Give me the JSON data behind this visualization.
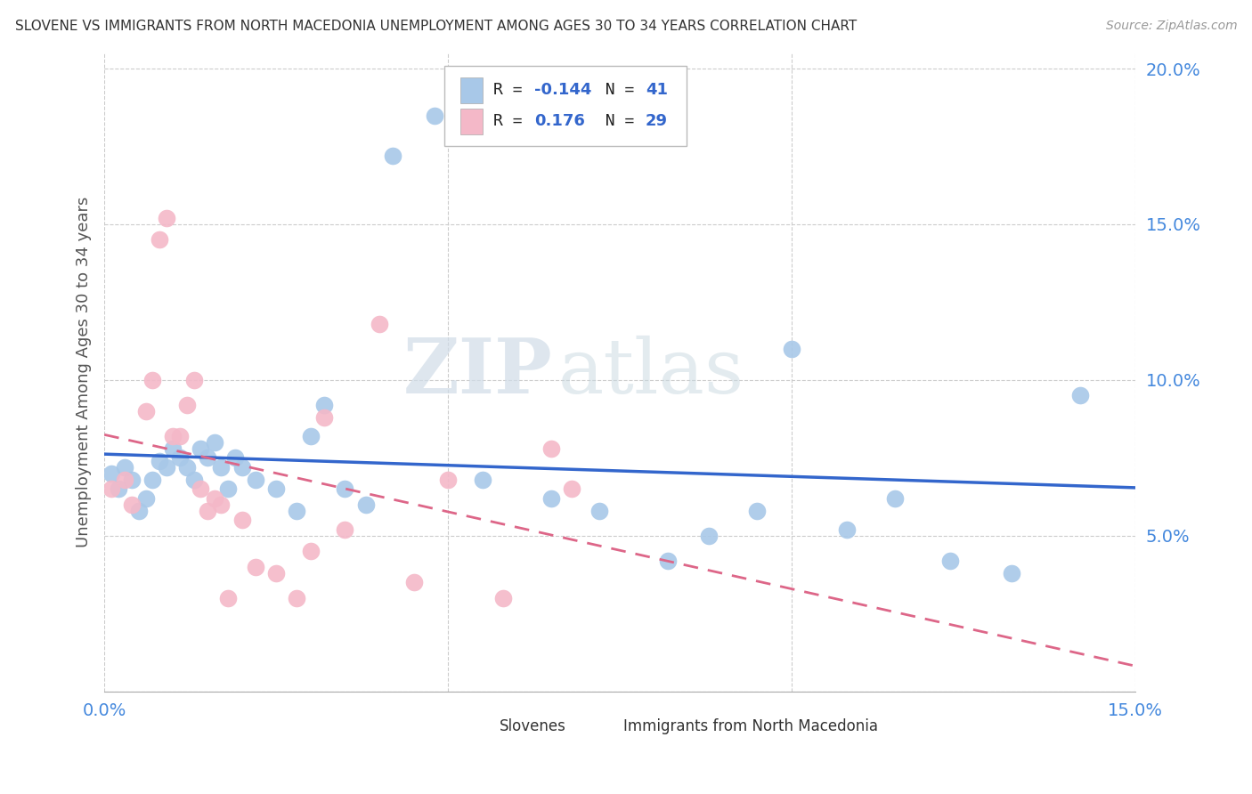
{
  "title": "SLOVENE VS IMMIGRANTS FROM NORTH MACEDONIA UNEMPLOYMENT AMONG AGES 30 TO 34 YEARS CORRELATION CHART",
  "source": "Source: ZipAtlas.com",
  "ylabel": "Unemployment Among Ages 30 to 34 years",
  "xlim": [
    0.0,
    0.15
  ],
  "ylim": [
    0.0,
    0.205
  ],
  "xticks": [
    0.0,
    0.05,
    0.1,
    0.15
  ],
  "yticks": [
    0.0,
    0.05,
    0.1,
    0.15,
    0.2
  ],
  "xtick_labels": [
    "0.0%",
    "",
    "",
    "15.0%"
  ],
  "ytick_labels": [
    "",
    "5.0%",
    "10.0%",
    "15.0%",
    "20.0%"
  ],
  "slovene_R": -0.144,
  "slovene_N": 41,
  "immig_R": 0.176,
  "immig_N": 29,
  "slovene_color": "#a8c8e8",
  "immig_color": "#f4b8c8",
  "slovene_line_color": "#3366cc",
  "immig_line_color": "#dd6688",
  "watermark_zip": "ZIP",
  "watermark_atlas": "atlas",
  "slovene_x": [
    0.001,
    0.002,
    0.003,
    0.004,
    0.005,
    0.006,
    0.007,
    0.008,
    0.009,
    0.01,
    0.011,
    0.012,
    0.013,
    0.014,
    0.015,
    0.016,
    0.017,
    0.018,
    0.019,
    0.02,
    0.022,
    0.025,
    0.028,
    0.03,
    0.032,
    0.035,
    0.038,
    0.042,
    0.048,
    0.055,
    0.065,
    0.072,
    0.082,
    0.088,
    0.095,
    0.1,
    0.108,
    0.115,
    0.123,
    0.132,
    0.142
  ],
  "slovene_y": [
    0.07,
    0.065,
    0.072,
    0.068,
    0.058,
    0.062,
    0.068,
    0.074,
    0.072,
    0.078,
    0.075,
    0.072,
    0.068,
    0.078,
    0.075,
    0.08,
    0.072,
    0.065,
    0.075,
    0.072,
    0.068,
    0.065,
    0.058,
    0.082,
    0.092,
    0.065,
    0.06,
    0.172,
    0.185,
    0.068,
    0.062,
    0.058,
    0.042,
    0.05,
    0.058,
    0.11,
    0.052,
    0.062,
    0.042,
    0.038,
    0.095
  ],
  "immig_x": [
    0.001,
    0.003,
    0.004,
    0.006,
    0.007,
    0.008,
    0.009,
    0.01,
    0.011,
    0.012,
    0.013,
    0.014,
    0.015,
    0.016,
    0.017,
    0.018,
    0.02,
    0.022,
    0.025,
    0.028,
    0.03,
    0.032,
    0.035,
    0.04,
    0.045,
    0.05,
    0.058,
    0.065,
    0.068
  ],
  "immig_y": [
    0.065,
    0.068,
    0.06,
    0.09,
    0.1,
    0.145,
    0.152,
    0.082,
    0.082,
    0.092,
    0.1,
    0.065,
    0.058,
    0.062,
    0.06,
    0.03,
    0.055,
    0.04,
    0.038,
    0.03,
    0.045,
    0.088,
    0.052,
    0.118,
    0.035,
    0.068,
    0.03,
    0.078,
    0.065
  ]
}
